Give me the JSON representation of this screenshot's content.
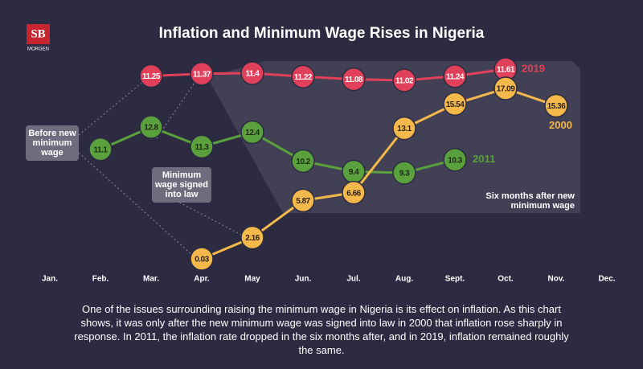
{
  "logo": {
    "mark": "SB",
    "name": "MORGEN"
  },
  "chart_data": {
    "type": "line",
    "title": "Inflation and Minimum Wage Rises in Nigeria",
    "categories": [
      "Jan.",
      "Feb.",
      "Mar.",
      "Apr.",
      "May",
      "Jun.",
      "Jul.",
      "Aug.",
      "Sept.",
      "Oct.",
      "Nov.",
      "Dec."
    ],
    "series": [
      {
        "name": "2019",
        "color": "#e0405a",
        "text_color": "#ffffff",
        "values": [
          null,
          null,
          11.25,
          11.37,
          11.4,
          11.22,
          11.08,
          11.02,
          11.24,
          11.61,
          null,
          null
        ]
      },
      {
        "name": "2011",
        "color": "#5aa03c",
        "text_color": "#1e2a18",
        "values": [
          null,
          11.1,
          12.8,
          11.3,
          12.4,
          10.2,
          9.4,
          9.3,
          10.3,
          null,
          null,
          null
        ]
      },
      {
        "name": "2000",
        "color": "#f5b84a",
        "text_color": "#2a2420",
        "values": [
          null,
          null,
          null,
          0.03,
          2.16,
          5.87,
          6.66,
          13.1,
          15.54,
          17.09,
          15.36,
          null
        ]
      }
    ],
    "annotations": [
      "Before new minimum wage",
      "Minimum wage signed into law",
      "Six months after new minimum wage"
    ],
    "caption": "One of the issues surrounding raising the minimum wage in Nigeria is its effect on inflation. As this chart shows, it was only after the new minimum wage was signed into law in 2000 that inflation rose sharply in response. In 2011, the inflation rate dropped in the six months after, and in 2019, inflation remained roughly the same."
  }
}
